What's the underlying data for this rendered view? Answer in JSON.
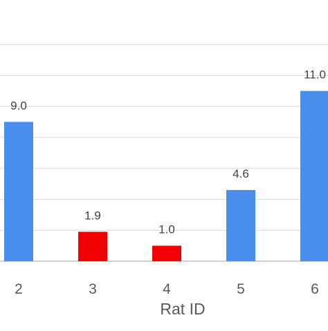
{
  "chart_data": {
    "type": "bar",
    "title": "",
    "xlabel": "Rat ID",
    "ylabel": "",
    "categories": [
      "2",
      "3",
      "4",
      "5",
      "6"
    ],
    "values": [
      9.0,
      1.9,
      1.0,
      4.6,
      11.0
    ],
    "value_labels": [
      "9.0",
      "1.9",
      "1.0",
      "4.6",
      "11.0"
    ],
    "bar_colors": [
      "#4a8eed",
      "#f00000",
      "#f00000",
      "#4a8eed",
      "#4a8eed"
    ],
    "ylim": [
      0,
      14
    ],
    "gridlines": [
      0,
      2,
      4,
      6,
      8,
      10,
      12,
      14
    ],
    "grid": true,
    "legend": "none"
  }
}
